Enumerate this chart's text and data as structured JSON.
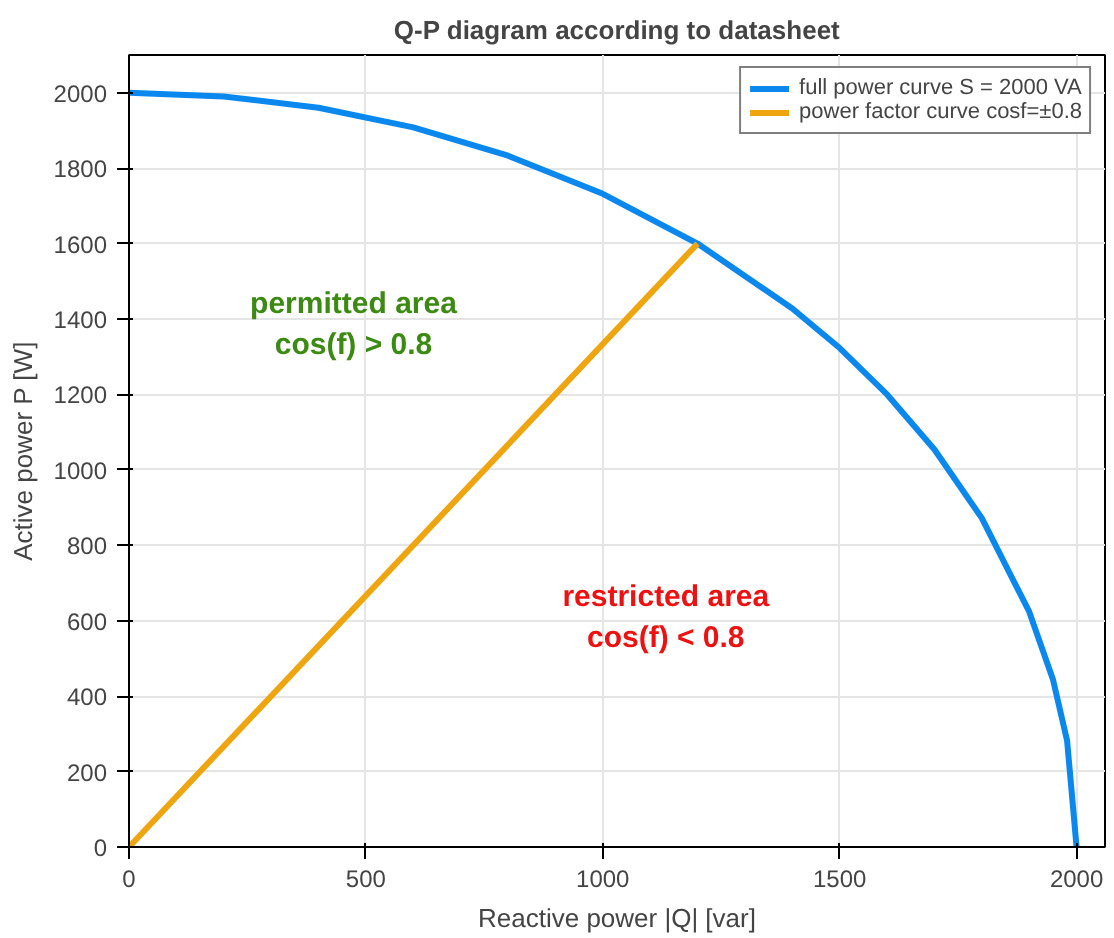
{
  "chart_data": {
    "type": "line",
    "title": "Q-P diagram according to datasheet",
    "xlabel": "Reactive power |Q| [var]",
    "ylabel": "Active power P [W]",
    "xlim": [
      0,
      2060
    ],
    "ylim": [
      0,
      2100
    ],
    "xticks": [
      0,
      500,
      1000,
      1500,
      2000
    ],
    "yticks": [
      0,
      200,
      400,
      600,
      800,
      1000,
      1200,
      1400,
      1600,
      1800,
      2000
    ],
    "grid": true,
    "legend": "top right",
    "series": [
      {
        "name": "full power curve S = 2000 VA",
        "color": "#0a88ee",
        "x": [
          0,
          200,
          400,
          600,
          800,
          1000,
          1200,
          1400,
          1500,
          1600,
          1700,
          1800,
          1900,
          1950,
          1980,
          2000
        ],
        "values": [
          2000,
          1990,
          1960,
          1908,
          1833,
          1732,
          1600,
          1428,
          1323,
          1200,
          1054,
          872,
          624,
          445,
          282,
          0
        ]
      },
      {
        "name": "power factor curve cosf=±0.8",
        "color": "#eea50f",
        "x": [
          0,
          1200
        ],
        "values": [
          0,
          1600
        ]
      }
    ],
    "annotations": [
      "permitted area\ncos(f) > 0.8",
      "restricted area\ncos(f) < 0.8"
    ]
  }
}
